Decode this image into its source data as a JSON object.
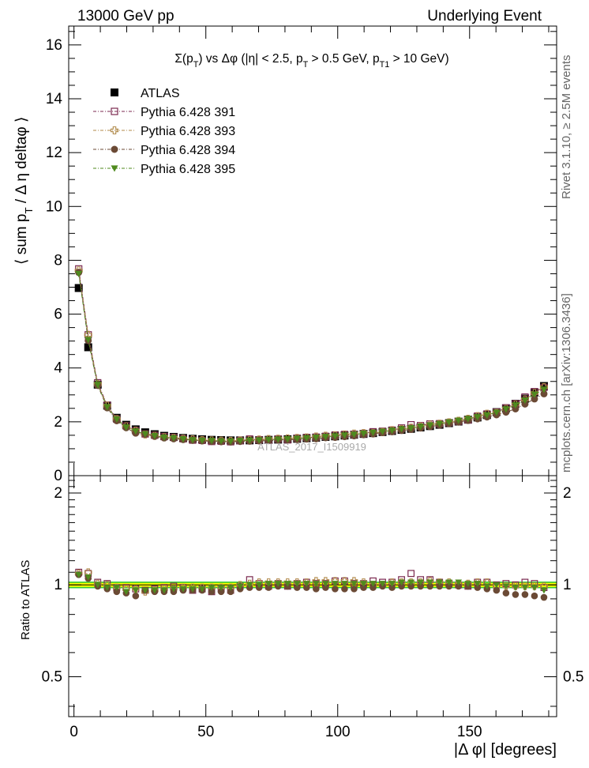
{
  "header": {
    "left": "13000 GeV pp",
    "right": "Underlying Event"
  },
  "side_labels": {
    "rivet": "Rivet 3.1.10, ≥ 2.5M events",
    "mcplots": "mcplots.cern.ch [arXiv:1306.3436]"
  },
  "watermark": "ATLAS_2017_I1509919",
  "colors": {
    "data": "#000000",
    "p391": "#7b2a50",
    "p393": "#b08a4a",
    "p394": "#6b4a35",
    "p395": "#4f8a1e",
    "band_inner": "#ffff00",
    "band_outer": "#33cc33"
  },
  "chart_data": [
    {
      "type": "scatter",
      "title": "Σ(p_T) vs Δφ (|η| < 2.5, p_T > 0.5 GeV, p_T1 > 10 GeV)",
      "ylabel": "⟨ sum p_T / Δ η deltaφ ⟩",
      "xlabel": "",
      "xlim": [
        -2,
        183
      ],
      "ylim": [
        0,
        16.7
      ],
      "yticks": [
        0,
        2,
        4,
        6,
        8,
        10,
        12,
        14,
        16
      ],
      "legend_position": "top-left",
      "x": [
        1.8,
        5.4,
        9.0,
        12.6,
        16.2,
        19.8,
        23.4,
        27.0,
        30.6,
        34.2,
        37.8,
        41.4,
        45.0,
        48.6,
        52.2,
        55.8,
        59.4,
        63.0,
        66.6,
        70.2,
        73.8,
        77.4,
        81.0,
        84.6,
        88.2,
        91.8,
        95.4,
        99.0,
        102.6,
        106.2,
        109.8,
        113.4,
        117.0,
        120.6,
        124.2,
        127.8,
        131.4,
        135.0,
        138.6,
        142.2,
        145.8,
        149.4,
        153.0,
        156.6,
        160.2,
        163.8,
        167.4,
        171.0,
        174.6,
        178.2
      ],
      "series": [
        {
          "name": "ATLAS",
          "marker": "square-filled",
          "values": [
            6.97,
            4.77,
            3.38,
            2.6,
            2.15,
            1.89,
            1.72,
            1.61,
            1.54,
            1.48,
            1.44,
            1.4,
            1.37,
            1.35,
            1.33,
            1.32,
            1.31,
            1.31,
            1.31,
            1.32,
            1.33,
            1.34,
            1.35,
            1.37,
            1.39,
            1.41,
            1.44,
            1.46,
            1.49,
            1.52,
            1.55,
            1.58,
            1.62,
            1.66,
            1.7,
            1.74,
            1.79,
            1.84,
            1.89,
            1.95,
            2.01,
            2.08,
            2.16,
            2.25,
            2.36,
            2.5,
            2.67,
            2.86,
            3.09,
            3.33
          ]
        },
        {
          "name": "Pythia 6.428 391",
          "marker": "square-open",
          "values": [
            7.68,
            5.23,
            3.45,
            2.62,
            2.1,
            1.85,
            1.67,
            1.55,
            1.5,
            1.45,
            1.42,
            1.37,
            1.32,
            1.31,
            1.27,
            1.28,
            1.26,
            1.3,
            1.36,
            1.33,
            1.32,
            1.36,
            1.33,
            1.39,
            1.42,
            1.43,
            1.46,
            1.51,
            1.53,
            1.53,
            1.56,
            1.63,
            1.65,
            1.69,
            1.77,
            1.89,
            1.86,
            1.92,
            1.93,
            1.97,
            2.02,
            2.07,
            2.21,
            2.29,
            2.36,
            2.52,
            2.67,
            2.92,
            3.12,
            3.28
          ]
        },
        {
          "name": "Pythia 6.428 393",
          "marker": "cross-open",
          "values": [
            7.62,
            5.23,
            3.4,
            2.6,
            2.1,
            1.83,
            1.67,
            1.53,
            1.48,
            1.43,
            1.4,
            1.37,
            1.35,
            1.32,
            1.31,
            1.3,
            1.29,
            1.31,
            1.32,
            1.34,
            1.36,
            1.37,
            1.38,
            1.4,
            1.42,
            1.45,
            1.48,
            1.5,
            1.53,
            1.56,
            1.58,
            1.58,
            1.62,
            1.69,
            1.73,
            1.78,
            1.83,
            1.89,
            1.93,
            1.98,
            2.04,
            2.11,
            2.21,
            2.3,
            2.33,
            2.48,
            2.64,
            2.83,
            3.07,
            3.29
          ]
        },
        {
          "name": "Pythia 6.428 394",
          "marker": "circle-filled",
          "values": [
            7.55,
            5.02,
            3.35,
            2.52,
            2.04,
            1.78,
            1.58,
            1.54,
            1.46,
            1.4,
            1.37,
            1.34,
            1.31,
            1.29,
            1.27,
            1.26,
            1.25,
            1.27,
            1.28,
            1.29,
            1.3,
            1.32,
            1.33,
            1.34,
            1.36,
            1.37,
            1.41,
            1.42,
            1.45,
            1.48,
            1.52,
            1.55,
            1.6,
            1.63,
            1.68,
            1.72,
            1.77,
            1.82,
            1.88,
            1.93,
            1.99,
            2.05,
            2.11,
            2.18,
            2.26,
            2.36,
            2.48,
            2.66,
            2.85,
            3.04
          ]
        },
        {
          "name": "Pythia 6.428 395",
          "marker": "triangle-down-filled",
          "values": [
            7.5,
            5.05,
            3.38,
            2.55,
            2.1,
            1.8,
            1.65,
            1.55,
            1.48,
            1.42,
            1.4,
            1.36,
            1.33,
            1.31,
            1.3,
            1.29,
            1.28,
            1.3,
            1.31,
            1.32,
            1.34,
            1.35,
            1.36,
            1.38,
            1.4,
            1.42,
            1.45,
            1.47,
            1.5,
            1.53,
            1.57,
            1.6,
            1.64,
            1.68,
            1.73,
            1.77,
            1.82,
            1.87,
            1.93,
            1.99,
            2.05,
            2.11,
            2.18,
            2.25,
            2.35,
            2.47,
            2.62,
            2.8,
            3.02,
            3.2
          ]
        }
      ]
    },
    {
      "type": "scatter",
      "title": "",
      "ylabel": "Ratio to ATLAS",
      "xlabel": "|Δ φ| [degrees]",
      "xlim": [
        -2,
        183
      ],
      "ylim": [
        0.37,
        2.28
      ],
      "yticks": [
        0.5,
        1,
        2
      ],
      "xticks": [
        0,
        50,
        100,
        150
      ],
      "band": {
        "inner": [
          0.985,
          1.015
        ],
        "outer": [
          0.975,
          1.025
        ]
      },
      "x": [
        1.8,
        5.4,
        9.0,
        12.6,
        16.2,
        19.8,
        23.4,
        27.0,
        30.6,
        34.2,
        37.8,
        41.4,
        45.0,
        48.6,
        52.2,
        55.8,
        59.4,
        63.0,
        66.6,
        70.2,
        73.8,
        77.4,
        81.0,
        84.6,
        88.2,
        91.8,
        95.4,
        99.0,
        102.6,
        106.2,
        109.8,
        113.4,
        117.0,
        120.6,
        124.2,
        127.8,
        131.4,
        135.0,
        138.6,
        142.2,
        145.8,
        149.4,
        153.0,
        156.6,
        160.2,
        163.8,
        167.4,
        171.0,
        174.6,
        178.2
      ],
      "series": [
        {
          "name": "Pythia 6.428 391",
          "marker": "square-open",
          "values": [
            1.1,
            1.09,
            1.02,
            1.01,
            0.98,
            0.98,
            0.97,
            0.96,
            0.97,
            0.98,
            0.99,
            0.98,
            0.96,
            0.97,
            0.95,
            0.97,
            0.96,
            0.99,
            1.04,
            1.01,
            0.99,
            1.01,
            0.99,
            1.01,
            1.02,
            1.01,
            1.01,
            1.03,
            1.03,
            1.01,
            1.01,
            1.03,
            1.02,
            1.02,
            1.04,
            1.09,
            1.04,
            1.04,
            1.02,
            1.01,
            1.0,
            0.99,
            1.02,
            1.02,
            1.0,
            1.01,
            1.0,
            1.02,
            1.01,
            0.98
          ]
        },
        {
          "name": "Pythia 6.428 393",
          "marker": "cross-open",
          "values": [
            1.09,
            1.1,
            1.01,
            1.0,
            0.98,
            0.97,
            0.97,
            0.95,
            0.96,
            0.97,
            0.97,
            0.98,
            0.98,
            0.98,
            0.98,
            0.98,
            0.98,
            1.0,
            1.01,
            1.02,
            1.02,
            1.02,
            1.02,
            1.02,
            1.02,
            1.03,
            1.03,
            1.03,
            1.03,
            1.03,
            1.02,
            1.0,
            1.0,
            1.02,
            1.02,
            1.02,
            1.02,
            1.03,
            1.02,
            1.02,
            1.01,
            1.01,
            1.02,
            1.02,
            0.99,
            0.99,
            0.99,
            0.99,
            0.99,
            0.99
          ]
        },
        {
          "name": "Pythia 6.428 394",
          "marker": "circle-filled",
          "values": [
            1.08,
            1.05,
            0.99,
            0.97,
            0.95,
            0.94,
            0.92,
            0.96,
            0.95,
            0.95,
            0.95,
            0.96,
            0.96,
            0.96,
            0.95,
            0.95,
            0.95,
            0.97,
            0.98,
            0.98,
            0.98,
            0.99,
            0.99,
            0.98,
            0.98,
            0.97,
            0.98,
            0.97,
            0.97,
            0.97,
            0.98,
            0.98,
            0.99,
            0.98,
            0.99,
            0.99,
            0.99,
            0.99,
            0.99,
            0.99,
            0.99,
            0.99,
            0.98,
            0.97,
            0.96,
            0.94,
            0.93,
            0.93,
            0.92,
            0.91
          ]
        },
        {
          "name": "Pythia 6.428 395",
          "marker": "triangle-down-filled",
          "values": [
            1.08,
            1.06,
            1.0,
            0.98,
            0.98,
            0.95,
            0.96,
            0.96,
            0.96,
            0.96,
            0.97,
            0.97,
            0.97,
            0.97,
            0.98,
            0.98,
            0.98,
            0.99,
            1.0,
            1.0,
            1.01,
            1.01,
            1.01,
            1.01,
            1.01,
            1.01,
            1.01,
            1.01,
            1.01,
            1.01,
            1.01,
            1.01,
            1.01,
            1.01,
            1.02,
            1.02,
            1.02,
            1.02,
            1.02,
            1.02,
            1.02,
            1.01,
            1.01,
            0.99,
            1.0,
            0.99,
            0.98,
            0.98,
            0.98,
            0.96
          ]
        }
      ]
    }
  ]
}
